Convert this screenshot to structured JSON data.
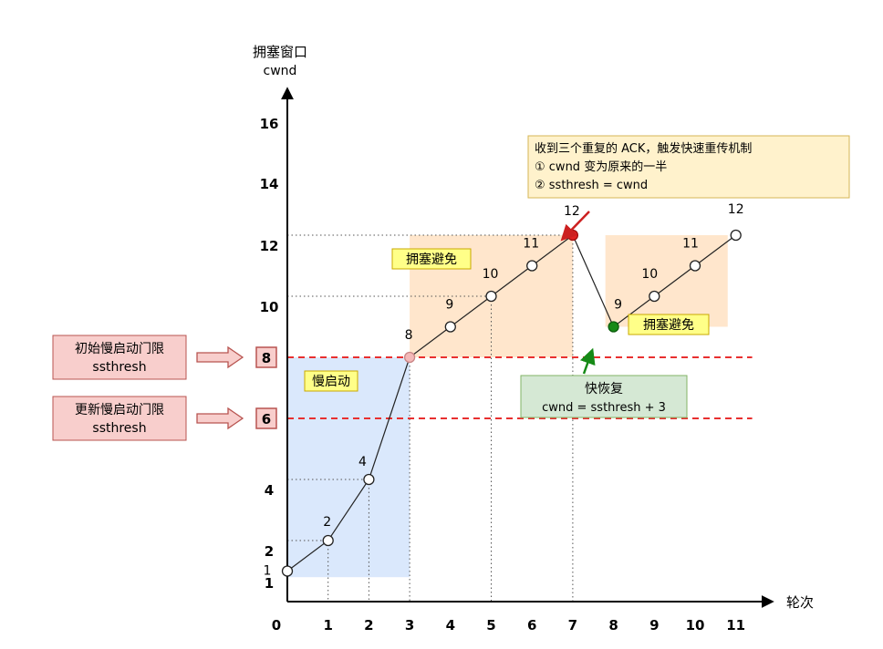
{
  "chart_data": {
    "type": "line",
    "ylabel_cn": "拥塞窗口",
    "ylabel_en": "cwnd",
    "xlabel": "轮次",
    "x_ticks": [
      "0",
      "1",
      "2",
      "3",
      "4",
      "5",
      "6",
      "7",
      "8",
      "9",
      "10",
      "11"
    ],
    "y_ticks": [
      "16",
      "14",
      "12",
      "10",
      "4",
      "2",
      "1"
    ],
    "highlighted_y_ticks": [
      "8",
      "6"
    ],
    "series": [
      {
        "points": [
          {
            "x": 0,
            "y": 1,
            "label": "1"
          },
          {
            "x": 1,
            "y": 2,
            "label": "2"
          },
          {
            "x": 2,
            "y": 4,
            "label": "4"
          },
          {
            "x": 3,
            "y": 8,
            "label": "8"
          },
          {
            "x": 4,
            "y": 9,
            "label": "9"
          },
          {
            "x": 5,
            "y": 10,
            "label": "10"
          },
          {
            "x": 6,
            "y": 11,
            "label": "11"
          },
          {
            "x": 7,
            "y": 12,
            "label": "12"
          },
          {
            "x": 8,
            "y": 9,
            "label": "9"
          },
          {
            "x": 9,
            "y": 10,
            "label": "10"
          },
          {
            "x": 10,
            "y": 11,
            "label": "11"
          },
          {
            "x": 11,
            "y": 12,
            "label": "12"
          }
        ]
      }
    ],
    "thresholds": [
      {
        "y": 8,
        "color": "#e83030"
      },
      {
        "y": 6,
        "color": "#e83030"
      }
    ],
    "regions": [
      {
        "label": "慢启动",
        "x0": 0,
        "x1": 3,
        "y0": 0.8,
        "y1": 8,
        "color": "#dae8fc"
      },
      {
        "label": "拥塞避免",
        "x0": 3,
        "x1": 7,
        "y0": 8,
        "y1": 12,
        "color": "#ffe6cc"
      },
      {
        "label": "拥塞避免",
        "x0": 7.8,
        "x1": 10.8,
        "y0": 9,
        "y1": 12,
        "color": "#ffe6cc"
      }
    ],
    "side_labels": [
      {
        "line1": "初始慢启动门限",
        "line2": "ssthresh",
        "target": "8"
      },
      {
        "line1": "更新慢启动门限",
        "line2": "ssthresh",
        "target": "6"
      }
    ],
    "annotations": {
      "ack_note": [
        "收到三个重复的 ACK，触发快速重传机制",
        "① cwnd 变为原来的一半",
        "② ssthresh = cwnd"
      ],
      "fast_recovery": [
        "快恢复",
        "cwnd = ssthresh + 3"
      ]
    },
    "colors": {
      "slow_start_bg": "#dae8fc",
      "avoid_bg": "#ffe6cc",
      "label_yellow": "#ffff88",
      "label_yellow_border": "#c9a800",
      "side_box": "#f8cecc",
      "side_box_border": "#b85450",
      "ack_box": "#fff2cc",
      "ack_box_border": "#d6b656",
      "fr_box": "#d5e8d4",
      "fr_box_border": "#82b366",
      "dash_red": "#e83030",
      "point_red": "#e02020",
      "point_green": "#168a16",
      "point_pink": "#f4b8b8",
      "arrow_red": "#cc2020",
      "arrow_green": "#168a16"
    }
  }
}
